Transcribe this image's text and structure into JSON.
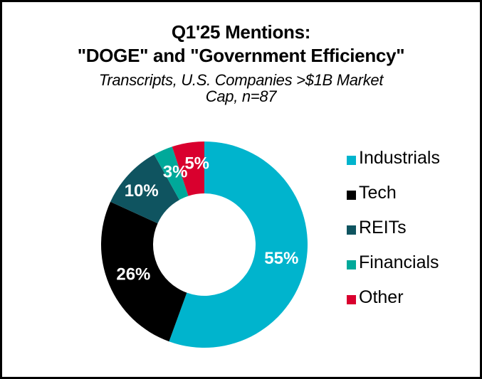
{
  "chart_data": {
    "type": "pie",
    "variant": "donut",
    "title": "Q1'25 Mentions:",
    "title_line2": "\"DOGE\" and \"Government Efficiency\"",
    "subtitle_line1": "Transcripts, U.S. Companies >$1B Market",
    "subtitle_line2": "Cap, n=87",
    "legend_position": "right",
    "slices": [
      {
        "name": "Industrials",
        "value": 55,
        "label": "55%",
        "color": "#00B4CD"
      },
      {
        "name": "Tech",
        "value": 26,
        "label": "26%",
        "color": "#000000"
      },
      {
        "name": "REITs",
        "value": 10,
        "label": "10%",
        "color": "#0F5460"
      },
      {
        "name": "Financials",
        "value": 3,
        "label": "3%",
        "color": "#00A99A"
      },
      {
        "name": "Other",
        "value": 5,
        "label": "5%",
        "color": "#D9002E"
      }
    ]
  }
}
